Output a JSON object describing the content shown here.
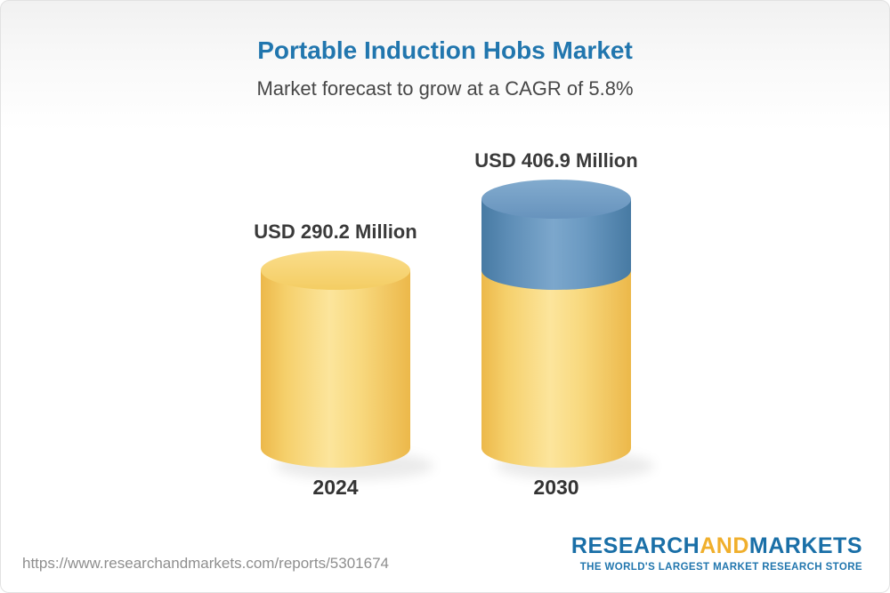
{
  "header": {
    "title": "Portable Induction Hobs Market",
    "subtitle": "Market forecast to grow at a CAGR of 5.8%"
  },
  "chart_data": {
    "type": "bar",
    "variant": "3d-cylinder",
    "title": "Portable Induction Hobs Market",
    "subtitle": "Market forecast to grow at a CAGR of 5.8%",
    "categories": [
      "2024",
      "2030"
    ],
    "values": [
      290.2,
      406.9
    ],
    "value_labels": [
      "USD 290.2 Million",
      "USD 406.9 Million"
    ],
    "unit": "USD Million",
    "cagr_percent": 5.8,
    "ylim": [
      0,
      406.9
    ],
    "colors": {
      "bar_base": "#f4cd63",
      "bar_growth": "#5e90ba",
      "title": "#2176ae",
      "label_text": "#3a3a3a"
    },
    "legend_position": "none",
    "grid": false
  },
  "footer": {
    "url": "https://www.researchandmarkets.com/reports/5301674",
    "logo_text_1": "RESEARCH",
    "logo_text_2": "AND",
    "logo_text_3": "MARKETS",
    "tagline": "THE WORLD'S LARGEST MARKET RESEARCH STORE"
  }
}
